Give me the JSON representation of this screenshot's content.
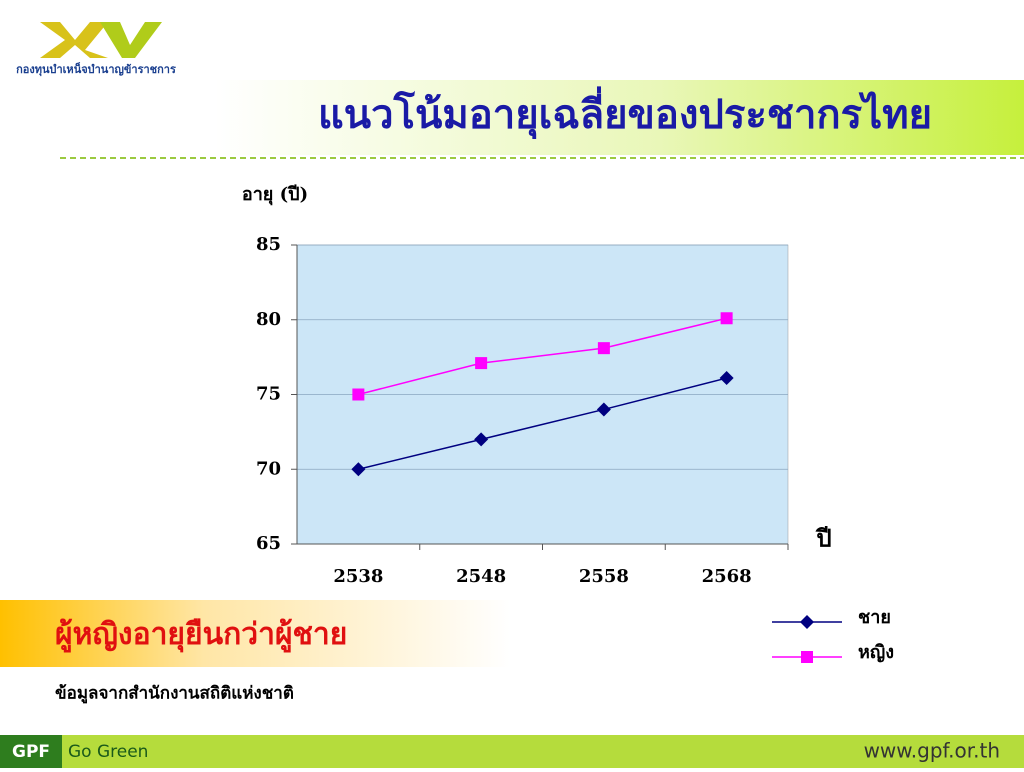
{
  "header": {
    "logo_text": "กองทุนบำเหน็จบำนาญข้าราชการ"
  },
  "chart_data": {
    "type": "line",
    "title": "แนวโน้มอายุเฉลี่ยของประชากรไทย",
    "y_label": "อายุ (ปี)",
    "x_label": "ปี",
    "categories": [
      "2538",
      "2548",
      "2558",
      "2568"
    ],
    "series": [
      {
        "name": "ชาย",
        "color": "#000080",
        "marker": "diamond",
        "values": [
          70,
          72,
          74,
          76.1
        ]
      },
      {
        "name": "หญิง",
        "color": "#ff00ff",
        "marker": "square",
        "values": [
          75,
          77.1,
          78.1,
          80.1
        ]
      }
    ],
    "ylim": [
      65,
      85
    ],
    "yticks": [
      65,
      70,
      75,
      80,
      85
    ],
    "grid": true,
    "plot_background": "#cce6f7",
    "legend": "bottom-right"
  },
  "callout": "ผู้หญิงอายุยืนกว่าผู้ชาย",
  "source": "ข้อมูลจากสำนักงานสถิติแห่งชาติ",
  "footer": {
    "badge": "GPF",
    "slogan": "Go Green",
    "url": "www.gpf.or.th"
  }
}
